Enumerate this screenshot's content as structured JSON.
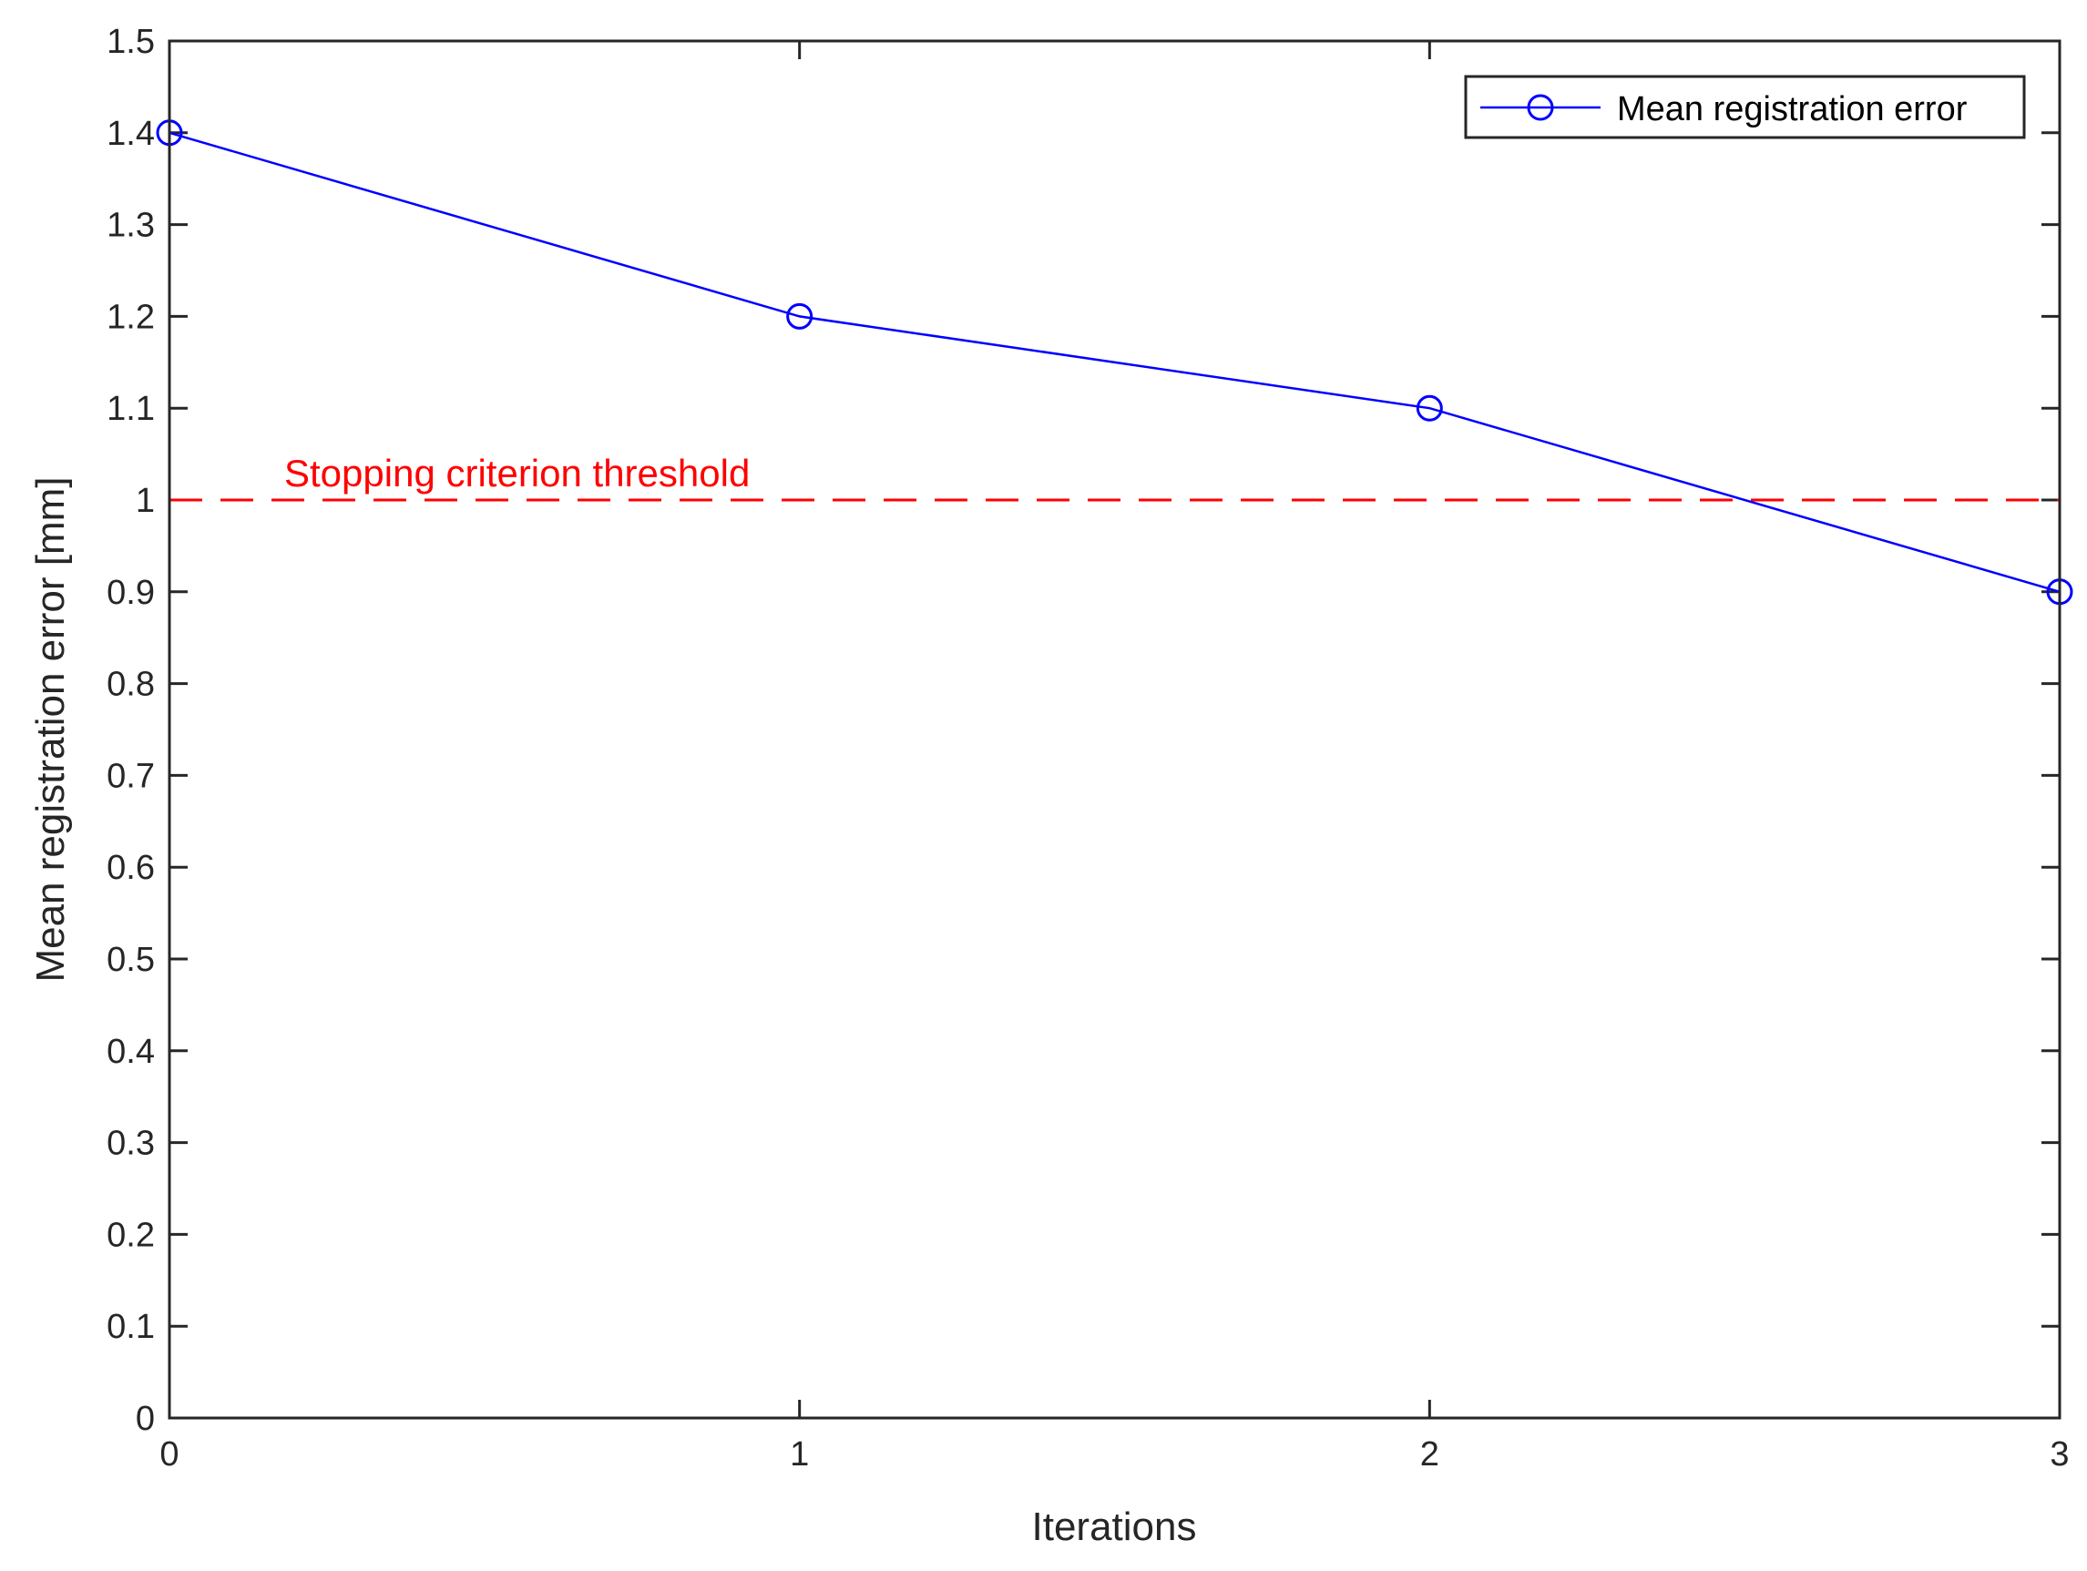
{
  "chart_data": {
    "type": "line",
    "xlabel": "Iterations",
    "ylabel": "Mean registration error [mm]",
    "xlim": [
      0,
      3
    ],
    "ylim": [
      0,
      1.5
    ],
    "x_ticks": [
      "0",
      "1",
      "2",
      "3"
    ],
    "y_ticks": [
      "0",
      "0.1",
      "0.2",
      "0.3",
      "0.4",
      "0.5",
      "0.6",
      "0.7",
      "0.8",
      "0.9",
      "1",
      "1.1",
      "1.2",
      "1.3",
      "1.4",
      "1.5"
    ],
    "grid": false,
    "legend_position": "top-right",
    "series": [
      {
        "name": "Mean registration error",
        "color": "#0000ff",
        "marker": "circle",
        "x": [
          0,
          1,
          2,
          3
        ],
        "y": [
          1.4,
          1.2,
          1.1,
          0.9
        ]
      }
    ],
    "reference_lines": [
      {
        "label": "Stopping criterion threshold",
        "y": 1.0,
        "style": "dashed",
        "color": "#ff0000"
      }
    ]
  }
}
